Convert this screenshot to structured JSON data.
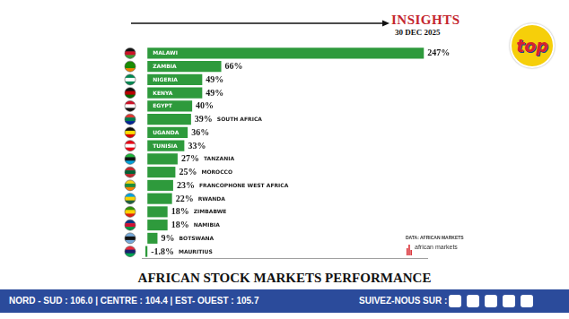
{
  "header": {
    "label": "INSIGHTS",
    "date": "30 DEC 2025",
    "logo": "top"
  },
  "chart_data": {
    "type": "bar",
    "orientation": "horizontal",
    "title": "AFRICAN STOCK MARKETS PERFORMANCE",
    "categories": [
      "MALAWI",
      "ZAMBIA",
      "NIGERIA",
      "KENYA",
      "EGYPT",
      "SOUTH AFRICA",
      "UGANDA",
      "TUNISIA",
      "TANZANIA",
      "MOROCCO",
      "FRANCOPHONE WEST AFRICA",
      "RWANDA",
      "ZIMBABWE",
      "NAMIBIA",
      "BOTSWANA",
      "MAURITIUS"
    ],
    "values": [
      247,
      66,
      49,
      49,
      40,
      39,
      36,
      33,
      27,
      25,
      23,
      22,
      18,
      18,
      9,
      -1.8
    ],
    "value_labels": [
      "247%",
      "66%",
      "49%",
      "49%",
      "40%",
      "39%",
      "36%",
      "33%",
      "27%",
      "25%",
      "23%",
      "22%",
      "18%",
      "18%",
      "9%",
      "-1.8%"
    ],
    "color": "#2e9a3c",
    "xlim": [
      -5,
      250
    ],
    "data_labels": true,
    "tick_labels": false,
    "grid": false,
    "source": "DATA: AFRICAN MARKETS",
    "source_logo": "african markets"
  },
  "footer": {
    "frequencies": "NORD - SUD : 106.0  |  CENTRE : 104.4  |  EST- OUEST : 105.7",
    "follow": "SUIVEZ-NOUS SUR :"
  }
}
